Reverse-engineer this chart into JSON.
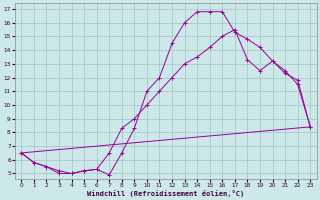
{
  "xlabel": "Windchill (Refroidissement éolien,°C)",
  "background_color": "#cce8e8",
  "grid_color": "#aacaca",
  "line_color": "#990099",
  "xlim_min": -0.5,
  "xlim_max": 23.5,
  "ylim_min": 4.6,
  "ylim_max": 17.4,
  "yticks": [
    5,
    6,
    7,
    8,
    9,
    10,
    11,
    12,
    13,
    14,
    15,
    16,
    17
  ],
  "xticks": [
    0,
    1,
    2,
    3,
    4,
    5,
    6,
    7,
    8,
    9,
    10,
    11,
    12,
    13,
    14,
    15,
    16,
    17,
    18,
    19,
    20,
    21,
    22,
    23
  ],
  "line1_x": [
    0,
    1,
    2,
    3,
    4,
    5,
    6,
    7,
    8,
    9,
    10,
    11,
    12,
    13,
    14,
    15,
    16,
    17,
    18,
    19,
    20,
    21,
    22,
    23
  ],
  "line1_y": [
    6.5,
    5.8,
    5.5,
    5.0,
    5.0,
    5.2,
    5.3,
    4.9,
    6.5,
    8.3,
    11.0,
    12.0,
    14.5,
    16.0,
    16.8,
    16.8,
    16.8,
    15.3,
    14.8,
    14.2,
    13.2,
    12.5,
    11.5,
    8.4
  ],
  "line2_x": [
    0,
    1,
    2,
    3,
    4,
    5,
    6,
    7,
    8,
    9,
    10,
    11,
    12,
    13,
    14,
    15,
    16,
    17,
    18,
    19,
    20,
    21,
    22,
    23
  ],
  "line2_y": [
    6.5,
    5.8,
    5.5,
    5.2,
    5.0,
    5.2,
    5.3,
    6.5,
    8.3,
    9.0,
    10.0,
    11.0,
    12.0,
    13.0,
    13.5,
    14.2,
    15.0,
    15.5,
    13.3,
    12.5,
    13.2,
    12.3,
    11.8,
    8.4
  ],
  "line3_x": [
    0,
    23
  ],
  "line3_y": [
    6.5,
    8.4
  ]
}
